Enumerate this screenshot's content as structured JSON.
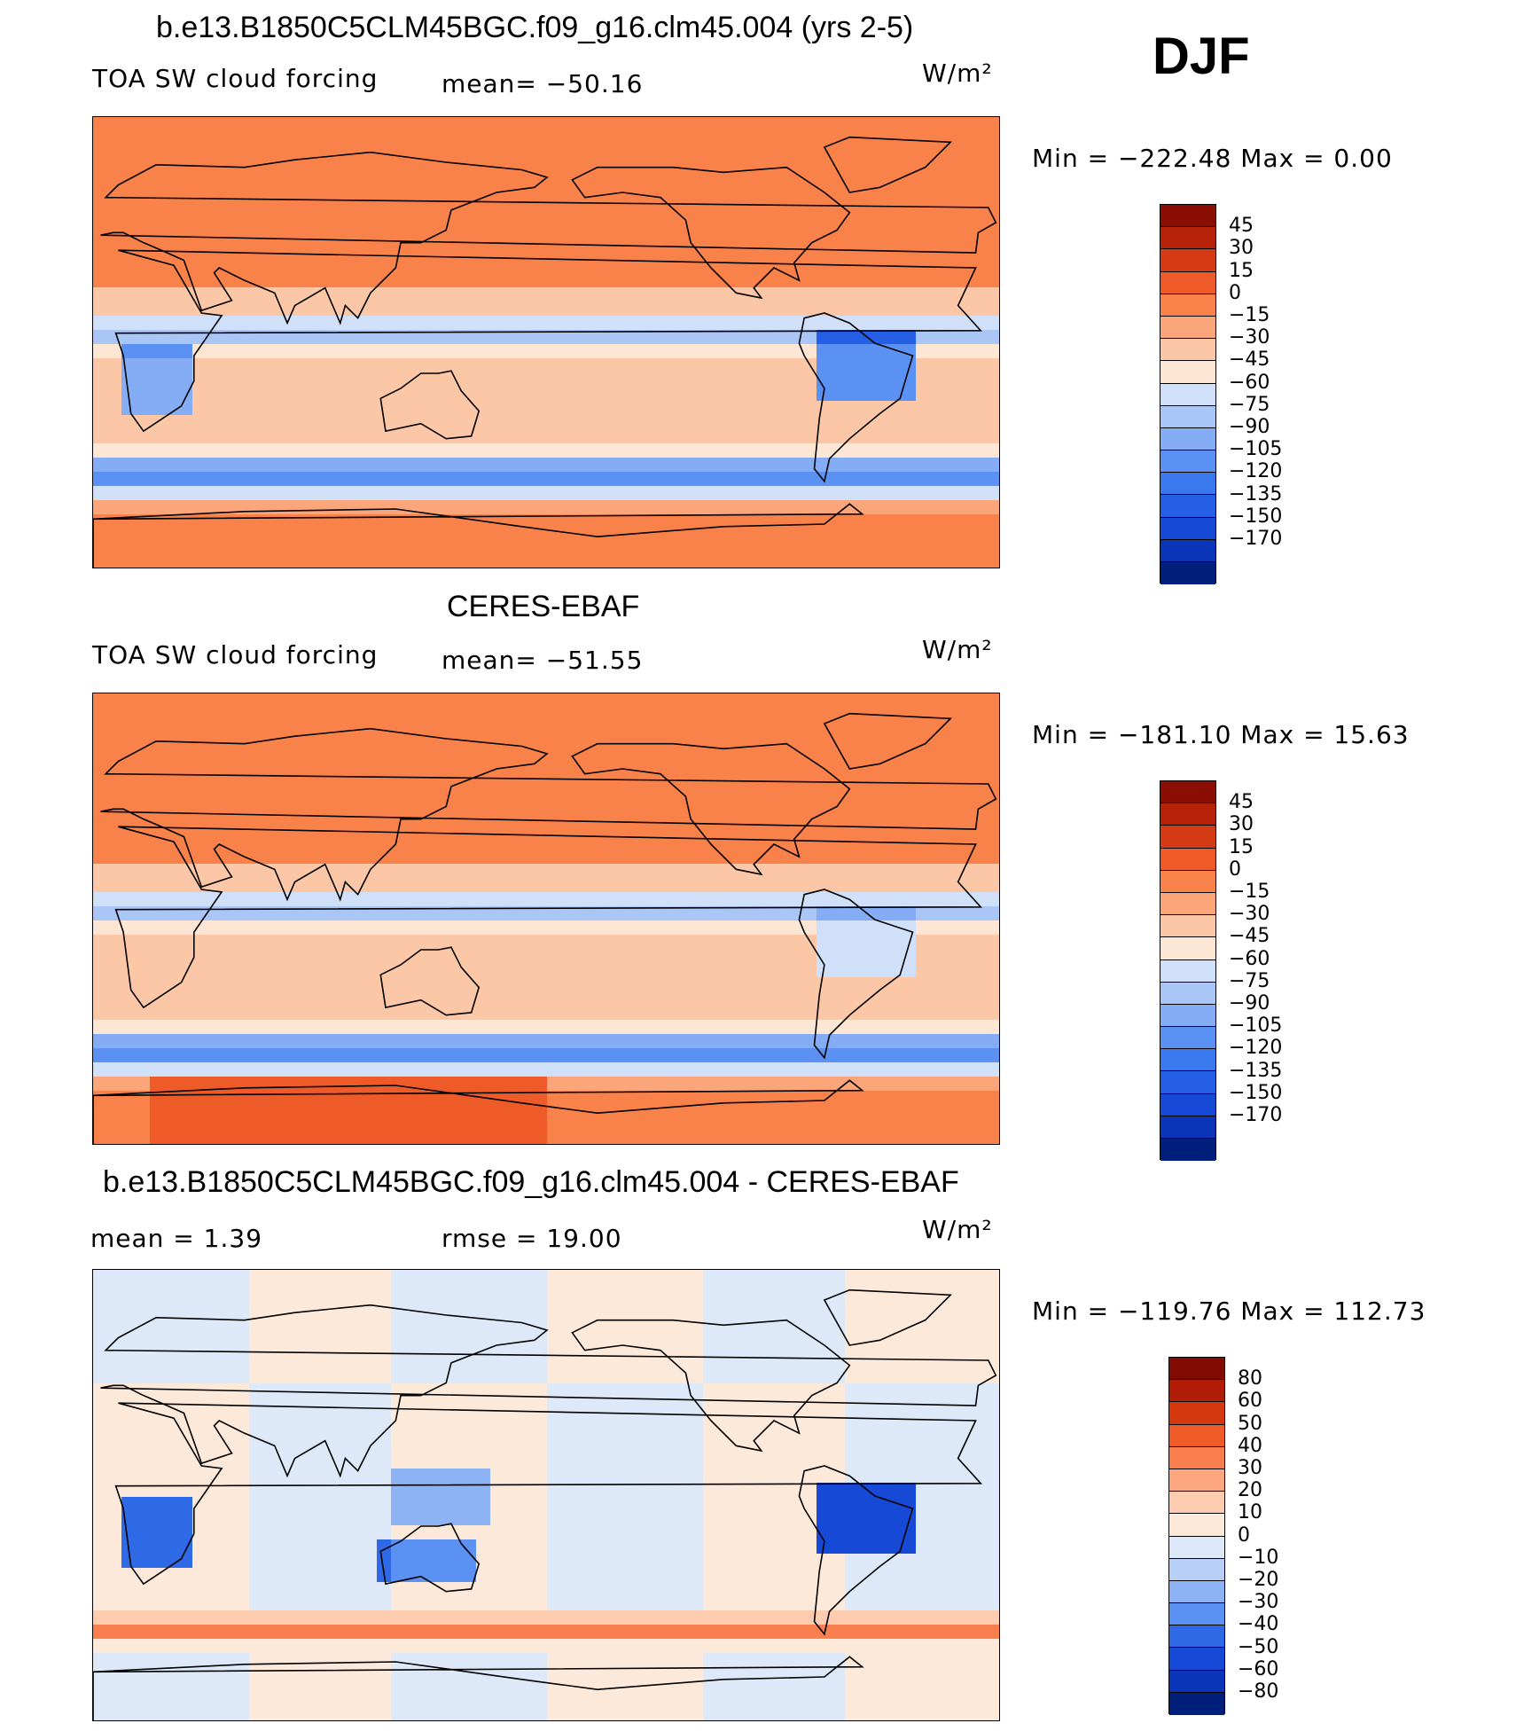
{
  "season": "DJF",
  "colors": {
    "land_line": "#000000",
    "levels_abs": [
      "#001f7a",
      "#0a35b8",
      "#1649d6",
      "#245fe6",
      "#3a78ee",
      "#5b91f2",
      "#84adf5",
      "#aac6f7",
      "#cfe0f8",
      "#fde6d4",
      "#fcc7a6",
      "#fba57a",
      "#f9814a",
      "#ef5b28",
      "#d43a14",
      "#b52208",
      "#8a0e04"
    ],
    "levels_diff": [
      "#001f7a",
      "#0a35b8",
      "#1649d6",
      "#2f6ae6",
      "#5b91f2",
      "#8db3f5",
      "#b8d0f7",
      "#dde9f9",
      "#fde9da",
      "#fdcbb0",
      "#fca77f",
      "#f9804e",
      "#ef5b28",
      "#d4380f",
      "#b01c05",
      "#820b02"
    ]
  },
  "panels": [
    {
      "title": "b.e13.B1850C5CLM45BGC.f09_g16.clm45.004 (yrs 2-5)",
      "sub_left": "TOA SW cloud forcing",
      "sub_mid": "mean=  −50.16",
      "units": "W/m²",
      "stats": "Min  =  −222.48  Max  =     0.00",
      "colorbar_labels": [
        "45",
        "30",
        "15",
        "0",
        "−15",
        "−30",
        "−45",
        "−60",
        "−75",
        "−90",
        "−105",
        "−120",
        "−135",
        "−150",
        "−170"
      ]
    },
    {
      "title": "CERES-EBAF",
      "sub_left": "TOA SW cloud forcing",
      "sub_mid": "mean=  −51.55",
      "units": "W/m²",
      "stats": "Min  =  −181.10  Max  =    15.63",
      "colorbar_labels": [
        "45",
        "30",
        "15",
        "0",
        "−15",
        "−30",
        "−45",
        "−60",
        "−75",
        "−90",
        "−105",
        "−120",
        "−135",
        "−150",
        "−170"
      ]
    },
    {
      "title": "b.e13.B1850C5CLM45BGC.f09_g16.clm45.004 - CERES-EBAF",
      "sub_left": "mean  =     1.39",
      "sub_mid": "rmse  =    19.00",
      "units": "W/m²",
      "stats": "Min  =  −119.76  Max  =  112.73",
      "colorbar_labels": [
        "80",
        "60",
        "50",
        "40",
        "30",
        "20",
        "10",
        "0",
        "−10",
        "−20",
        "−30",
        "−40",
        "−50",
        "−60",
        "−80"
      ]
    }
  ]
}
